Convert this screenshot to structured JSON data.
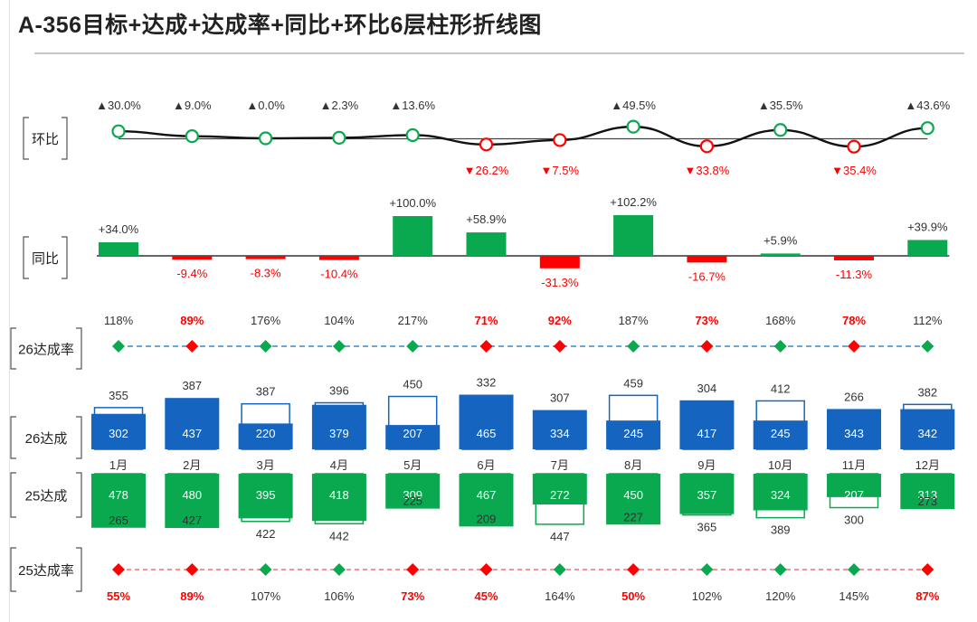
{
  "title": "A-356目标+达成+达成率+同比+环比6层柱形折线图",
  "row_labels": {
    "mom": "环比",
    "yoy": "同比",
    "rate26": "26达成率",
    "actual26": "26达成",
    "actual25": "25达成",
    "rate25": "25达成率"
  },
  "colors": {
    "green": "#0aa84f",
    "red": "#ff0000",
    "blue": "#1565c0",
    "dark": "#222222",
    "text": "#333333",
    "dash_blue": "#6aa6d8",
    "dash_red": "#f07070"
  },
  "chart_data": {
    "type": "bar",
    "categories": [
      "1月",
      "2月",
      "3月",
      "4月",
      "5月",
      "6月",
      "7月",
      "8月",
      "9月",
      "10月",
      "11月",
      "12月"
    ],
    "mom_labels": [
      "▲30.0%",
      "▲9.0%",
      "▲0.0%",
      "▲2.3%",
      "▲13.6%",
      "▼26.2%",
      "▼7.5%",
      "▲49.5%",
      "▼33.8%",
      "▲35.5%",
      "▼35.4%",
      "▲43.6%"
    ],
    "mom_values": [
      30.0,
      9.0,
      0.0,
      2.3,
      13.6,
      -26.2,
      -7.5,
      49.5,
      -33.8,
      35.5,
      -35.4,
      43.6
    ],
    "yoy_labels": [
      "+34.0%",
      "-9.4%",
      "-8.3%",
      "-10.4%",
      "+100.0%",
      "+58.9%",
      "-31.3%",
      "+102.2%",
      "-16.7%",
      "+5.9%",
      "-11.3%",
      "+39.9%"
    ],
    "yoy_values": [
      34.0,
      -9.4,
      -8.3,
      -10.4,
      100.0,
      58.9,
      -31.3,
      102.2,
      -16.7,
      5.9,
      -11.3,
      39.9
    ],
    "rate26_labels": [
      "118%",
      "89%",
      "176%",
      "104%",
      "217%",
      "71%",
      "92%",
      "187%",
      "73%",
      "168%",
      "78%",
      "112%"
    ],
    "rate26_values": [
      118,
      89,
      176,
      104,
      217,
      71,
      92,
      187,
      73,
      168,
      78,
      112
    ],
    "target26": [
      355,
      387,
      387,
      396,
      450,
      332,
      307,
      459,
      304,
      412,
      266,
      382
    ],
    "actual26": [
      302,
      437,
      220,
      379,
      207,
      465,
      334,
      245,
      417,
      245,
      343,
      342
    ],
    "actual25": [
      478,
      480,
      395,
      418,
      309,
      467,
      272,
      450,
      357,
      324,
      207,
      313
    ],
    "target25": [
      265,
      427,
      422,
      442,
      225,
      209,
      447,
      227,
      365,
      389,
      300,
      273
    ],
    "rate25_labels": [
      "55%",
      "89%",
      "107%",
      "106%",
      "73%",
      "45%",
      "164%",
      "50%",
      "102%",
      "120%",
      "145%",
      "87%"
    ],
    "rate25_values": [
      55,
      89,
      107,
      106,
      73,
      45,
      164,
      50,
      102,
      120,
      145,
      87
    ]
  }
}
